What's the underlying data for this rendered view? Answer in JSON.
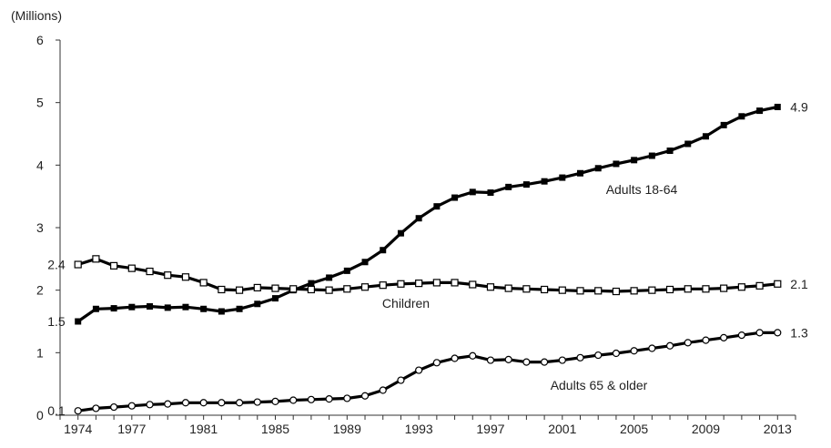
{
  "chart_data": {
    "type": "line",
    "y_unit_label": "(Millions)",
    "x": [
      1974,
      1975,
      1976,
      1977,
      1978,
      1979,
      1980,
      1981,
      1982,
      1983,
      1984,
      1985,
      1986,
      1987,
      1988,
      1989,
      1990,
      1991,
      1992,
      1993,
      1994,
      1995,
      1996,
      1997,
      1998,
      1999,
      2000,
      2001,
      2002,
      2003,
      2004,
      2005,
      2006,
      2007,
      2008,
      2009,
      2010,
      2011,
      2012,
      2013
    ],
    "x_ticks": [
      "1974",
      "1977",
      "1981",
      "1985",
      "1989",
      "1993",
      "1997",
      "2001",
      "2005",
      "2009",
      "2013"
    ],
    "x_tick_values": [
      1974,
      1977,
      1981,
      1985,
      1989,
      1993,
      1997,
      2001,
      2005,
      2009,
      2013
    ],
    "xlim": [
      1973,
      2014
    ],
    "y_ticks": [
      "0",
      "1",
      "2",
      "3",
      "4",
      "5",
      "6"
    ],
    "ylim": [
      0,
      6
    ],
    "grid": false,
    "series": [
      {
        "name": "Adults 18-64",
        "marker": "filled-square",
        "start_label": "1.5",
        "end_label": "4.9",
        "values": [
          1.5,
          1.7,
          1.71,
          1.73,
          1.74,
          1.72,
          1.73,
          1.7,
          1.66,
          1.7,
          1.78,
          1.87,
          2.0,
          2.11,
          2.2,
          2.31,
          2.45,
          2.64,
          2.91,
          3.15,
          3.34,
          3.48,
          3.57,
          3.56,
          3.65,
          3.69,
          3.74,
          3.8,
          3.87,
          3.95,
          4.02,
          4.08,
          4.15,
          4.23,
          4.34,
          4.46,
          4.64,
          4.78,
          4.87,
          4.93
        ]
      },
      {
        "name": "Children",
        "marker": "open-square",
        "start_label": "2.4",
        "end_label": "2.1",
        "values": [
          2.41,
          2.5,
          2.39,
          2.35,
          2.3,
          2.24,
          2.21,
          2.12,
          2.01,
          2.0,
          2.04,
          2.03,
          2.02,
          2.01,
          2.0,
          2.02,
          2.05,
          2.08,
          2.1,
          2.11,
          2.12,
          2.12,
          2.09,
          2.05,
          2.03,
          2.02,
          2.01,
          2.0,
          1.99,
          1.99,
          1.98,
          1.99,
          2.0,
          2.01,
          2.02,
          2.02,
          2.03,
          2.05,
          2.07,
          2.1
        ]
      },
      {
        "name": "Adults 65 & older",
        "marker": "open-circle",
        "start_label": "0.1",
        "end_label": "1.3",
        "values": [
          0.07,
          0.11,
          0.13,
          0.15,
          0.17,
          0.18,
          0.2,
          0.2,
          0.2,
          0.2,
          0.21,
          0.22,
          0.24,
          0.25,
          0.26,
          0.27,
          0.31,
          0.4,
          0.56,
          0.72,
          0.84,
          0.91,
          0.95,
          0.88,
          0.89,
          0.85,
          0.85,
          0.88,
          0.92,
          0.96,
          0.99,
          1.03,
          1.07,
          1.11,
          1.16,
          1.2,
          1.24,
          1.28,
          1.32,
          1.32
        ]
      }
    ]
  }
}
